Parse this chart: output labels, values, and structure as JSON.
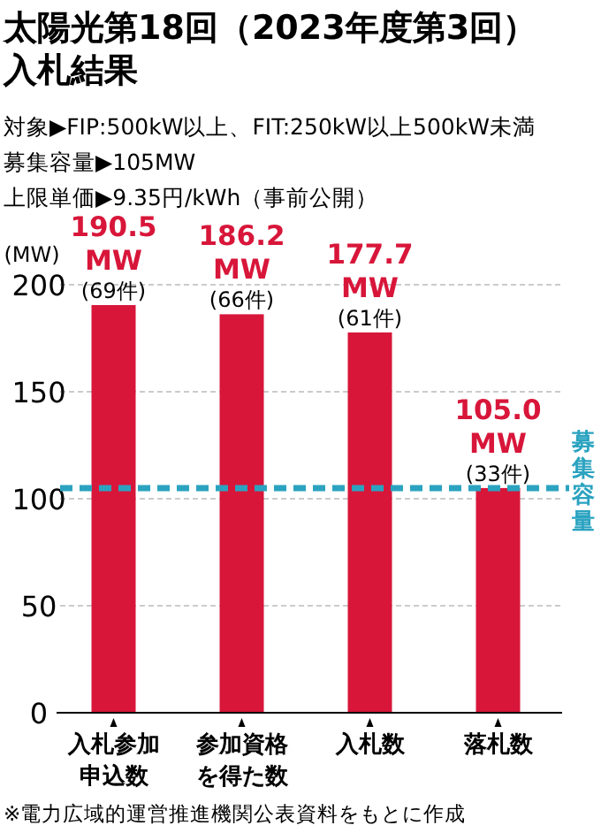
{
  "chart_data": {
    "type": "bar",
    "title": "太陽光第18回（2023年度第3回）",
    "subtitle": "入札結果",
    "categories": [
      "入札参加申込数",
      "参加資格を得た数",
      "入札数",
      "落札数"
    ],
    "values": [
      190.5,
      186.2,
      177.7,
      105.0
    ],
    "value_labels": [
      "190.5 MW",
      "186.2 MW",
      "177.7 MW",
      "105.0 MW"
    ],
    "color": "#d8163a",
    "ylabel": "(MW)",
    "ylim": [
      0,
      200
    ],
    "yticks": [
      0,
      50,
      100,
      150,
      200
    ],
    "grid": "y",
    "ref_lines": [
      {
        "axis": "y",
        "value": 105,
        "label": "募集容量",
        "color": "#2ba3c0",
        "line_style": "dashed"
      }
    ],
    "annotations": [
      {
        "text": "(69件)",
        "x": "入札参加申込数",
        "y": 190.5
      },
      {
        "text": "(66件)",
        "x": "参加資格を得た数",
        "y": 186.2
      },
      {
        "text": "(61件)",
        "x": "入札数",
        "y": 177.7
      },
      {
        "text": "(33件)",
        "x": "落札数",
        "y": 105.0
      },
      "対象▶FIP:500kW以上、FIT:250kW以上500kW未満",
      "募集容量▶105MW",
      "上限単価▶9.35円/kWh（事前公開）",
      "※電力広域的運営推進機関公表資料をもとに作成"
    ]
  }
}
